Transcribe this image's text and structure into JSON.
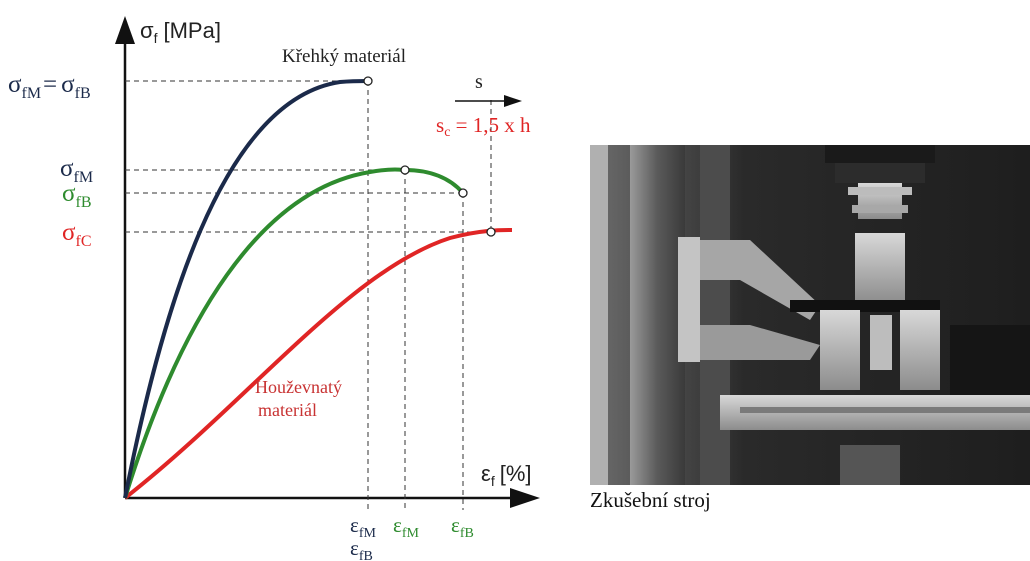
{
  "diagram": {
    "y_axis_label": {
      "main": "σ",
      "sub": "f",
      "unit": "[MPa]"
    },
    "x_axis_label": {
      "main": "ε",
      "sub": "f",
      "unit": "[%]"
    },
    "y_ticks": {
      "brittle": {
        "a_main": "σ",
        "a_sub": "fM",
        "equals": "=",
        "b_main": "σ",
        "b_sub": "fB"
      },
      "fM": {
        "main": "σ",
        "sub": "fM"
      },
      "fB": {
        "main": "σ",
        "sub": "fB"
      },
      "fC": {
        "main": "σ",
        "sub": "fC"
      }
    },
    "x_ticks": {
      "brittle_fM": {
        "main": "ε",
        "sub": "fM"
      },
      "brittle_fB": {
        "main": "ε",
        "sub": "fB"
      },
      "green_fM": {
        "main": "ε",
        "sub": "fM"
      },
      "green_fB": {
        "main": "ε",
        "sub": "fB"
      }
    },
    "labels": {
      "brittle": "Křehký materiál",
      "ductile_line1": "Houževnatý",
      "ductile_line2": "materiál",
      "s_arrow": "s",
      "sc_main": "s",
      "sc_sub": "c",
      "sc_rest": " = 1,5 x h"
    },
    "colors": {
      "brittle": "#1b2a4a",
      "medium": "#2e8b2e",
      "ductile": "#e02525",
      "ductile_text": "#c83232",
      "axis": "#111111"
    }
  },
  "photo": {
    "caption": "Zkušební stroj"
  }
}
